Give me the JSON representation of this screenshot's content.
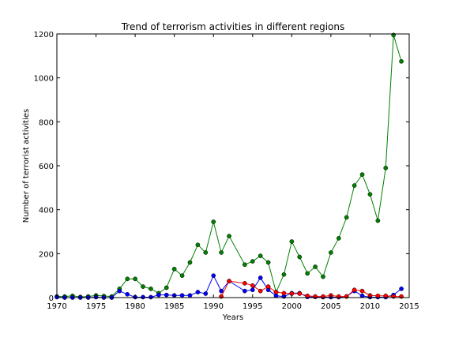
{
  "chart_data": {
    "type": "line",
    "title": "Trend of terrorism activities in different regions",
    "xlabel": "Years",
    "ylabel": "Number of terrorist activities",
    "xlim": [
      1970,
      2015
    ],
    "ylim": [
      0,
      1200
    ],
    "xticks": [
      "1970",
      "1975",
      "1980",
      "1985",
      "1990",
      "1995",
      "2000",
      "2005",
      "2010",
      "2015"
    ],
    "yticks": [
      "0",
      "200",
      "400",
      "600",
      "800",
      "1000",
      "1200"
    ],
    "grid": false,
    "series": [
      {
        "color": "#008000",
        "x": [
          1970,
          1971,
          1972,
          1973,
          1974,
          1975,
          1976,
          1977,
          1978,
          1979,
          1980,
          1981,
          1982,
          1983,
          1984,
          1985,
          1986,
          1987,
          1988,
          1989,
          1990,
          1991,
          1992,
          1994,
          1995,
          1996,
          1997,
          1998,
          1999,
          2000,
          2001,
          2002,
          2003,
          2004,
          2005,
          2006,
          2007,
          2008,
          2009,
          2010,
          2011,
          2012,
          2013,
          2014
        ],
        "y": [
          5,
          5,
          8,
          3,
          5,
          10,
          7,
          5,
          40,
          85,
          85,
          50,
          40,
          20,
          45,
          130,
          100,
          160,
          240,
          205,
          345,
          205,
          280,
          150,
          165,
          190,
          160,
          25,
          105,
          255,
          185,
          110,
          140,
          95,
          205,
          270,
          365,
          510,
          560,
          470,
          350,
          590,
          1195,
          1075
        ]
      },
      {
        "color": "#0000ff",
        "x": [
          1970,
          1971,
          1972,
          1973,
          1974,
          1975,
          1976,
          1977,
          1978,
          1979,
          1980,
          1981,
          1982,
          1983,
          1984,
          1985,
          1986,
          1987,
          1988,
          1989,
          1990,
          1991,
          1992,
          1994,
          1995,
          1996,
          1997,
          1998,
          1999,
          2000,
          2001,
          2002,
          2003,
          2004,
          2005,
          2006,
          2007,
          2008,
          2009,
          2010,
          2011,
          2012,
          2013,
          2014
        ],
        "y": [
          2,
          0,
          0,
          0,
          0,
          2,
          0,
          0,
          30,
          15,
          2,
          2,
          2,
          12,
          12,
          10,
          10,
          10,
          25,
          18,
          100,
          30,
          75,
          30,
          35,
          90,
          35,
          8,
          5,
          20,
          20,
          3,
          3,
          2,
          2,
          2,
          5,
          30,
          8,
          2,
          2,
          2,
          12,
          40
        ]
      },
      {
        "color": "#ff0000",
        "x": [
          1991,
          1992,
          1994,
          1995,
          1996,
          1997,
          1998,
          1999,
          2000,
          2001,
          2002,
          2003,
          2004,
          2005,
          2006,
          2007,
          2008,
          2009,
          2010,
          2011,
          2012,
          2013,
          2014
        ],
        "y": [
          5,
          75,
          65,
          55,
          30,
          50,
          25,
          20,
          18,
          18,
          8,
          5,
          5,
          10,
          5,
          5,
          35,
          30,
          10,
          8,
          8,
          5,
          5
        ]
      }
    ]
  }
}
